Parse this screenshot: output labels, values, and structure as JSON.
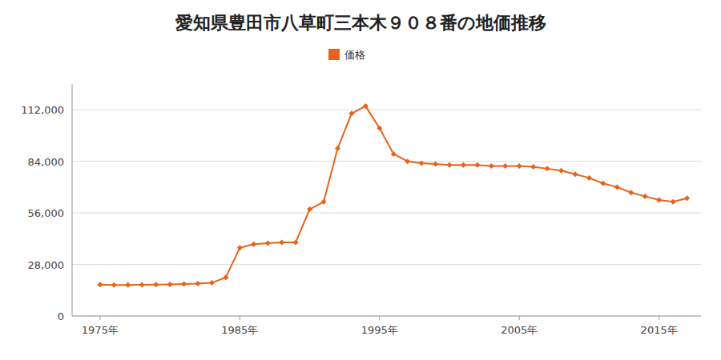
{
  "chart_data": {
    "type": "line",
    "title": "愛知県豊田市八草町三本木９０８番の地価推移",
    "x": [
      1975,
      1976,
      1977,
      1978,
      1979,
      1980,
      1981,
      1982,
      1983,
      1984,
      1985,
      1986,
      1987,
      1988,
      1989,
      1990,
      1991,
      1992,
      1993,
      1994,
      1995,
      1996,
      1997,
      1998,
      1999,
      2000,
      2001,
      2002,
      2003,
      2004,
      2005,
      2006,
      2007,
      2008,
      2009,
      2010,
      2011,
      2012,
      2013,
      2014,
      2015,
      2016,
      2017
    ],
    "series": [
      {
        "name": "価格",
        "color": "#e8621a",
        "marker": "diamond",
        "line_style": "solid",
        "values": [
          17000,
          16800,
          16800,
          16900,
          17100,
          17200,
          17400,
          17600,
          18000,
          21000,
          37000,
          39000,
          39500,
          40000,
          40000,
          58000,
          62000,
          91000,
          110000,
          114000,
          102000,
          88000,
          84000,
          83000,
          82500,
          82000,
          82000,
          82000,
          81500,
          81500,
          81500,
          81000,
          80000,
          79000,
          77000,
          75000,
          72000,
          70000,
          67000,
          65000,
          63000,
          62000,
          64000
        ]
      }
    ],
    "xlim": [
      1973,
      2018
    ],
    "xticks": [
      {
        "value": 1975,
        "label": "1975年"
      },
      {
        "value": 1985,
        "label": "1985年"
      },
      {
        "value": 1995,
        "label": "1995年"
      },
      {
        "value": 2005,
        "label": "2005年"
      },
      {
        "value": 2015,
        "label": "2015年"
      }
    ],
    "ylim": [
      0,
      126000
    ],
    "yticks": [
      0,
      {
        "value": 28000,
        "label": "28,000"
      },
      {
        "value": 56000,
        "label": "56,000"
      },
      {
        "value": 84000,
        "label": "84,000"
      },
      {
        "value": 112000,
        "label": "112,000"
      }
    ],
    "grid": true,
    "legend": "top"
  }
}
